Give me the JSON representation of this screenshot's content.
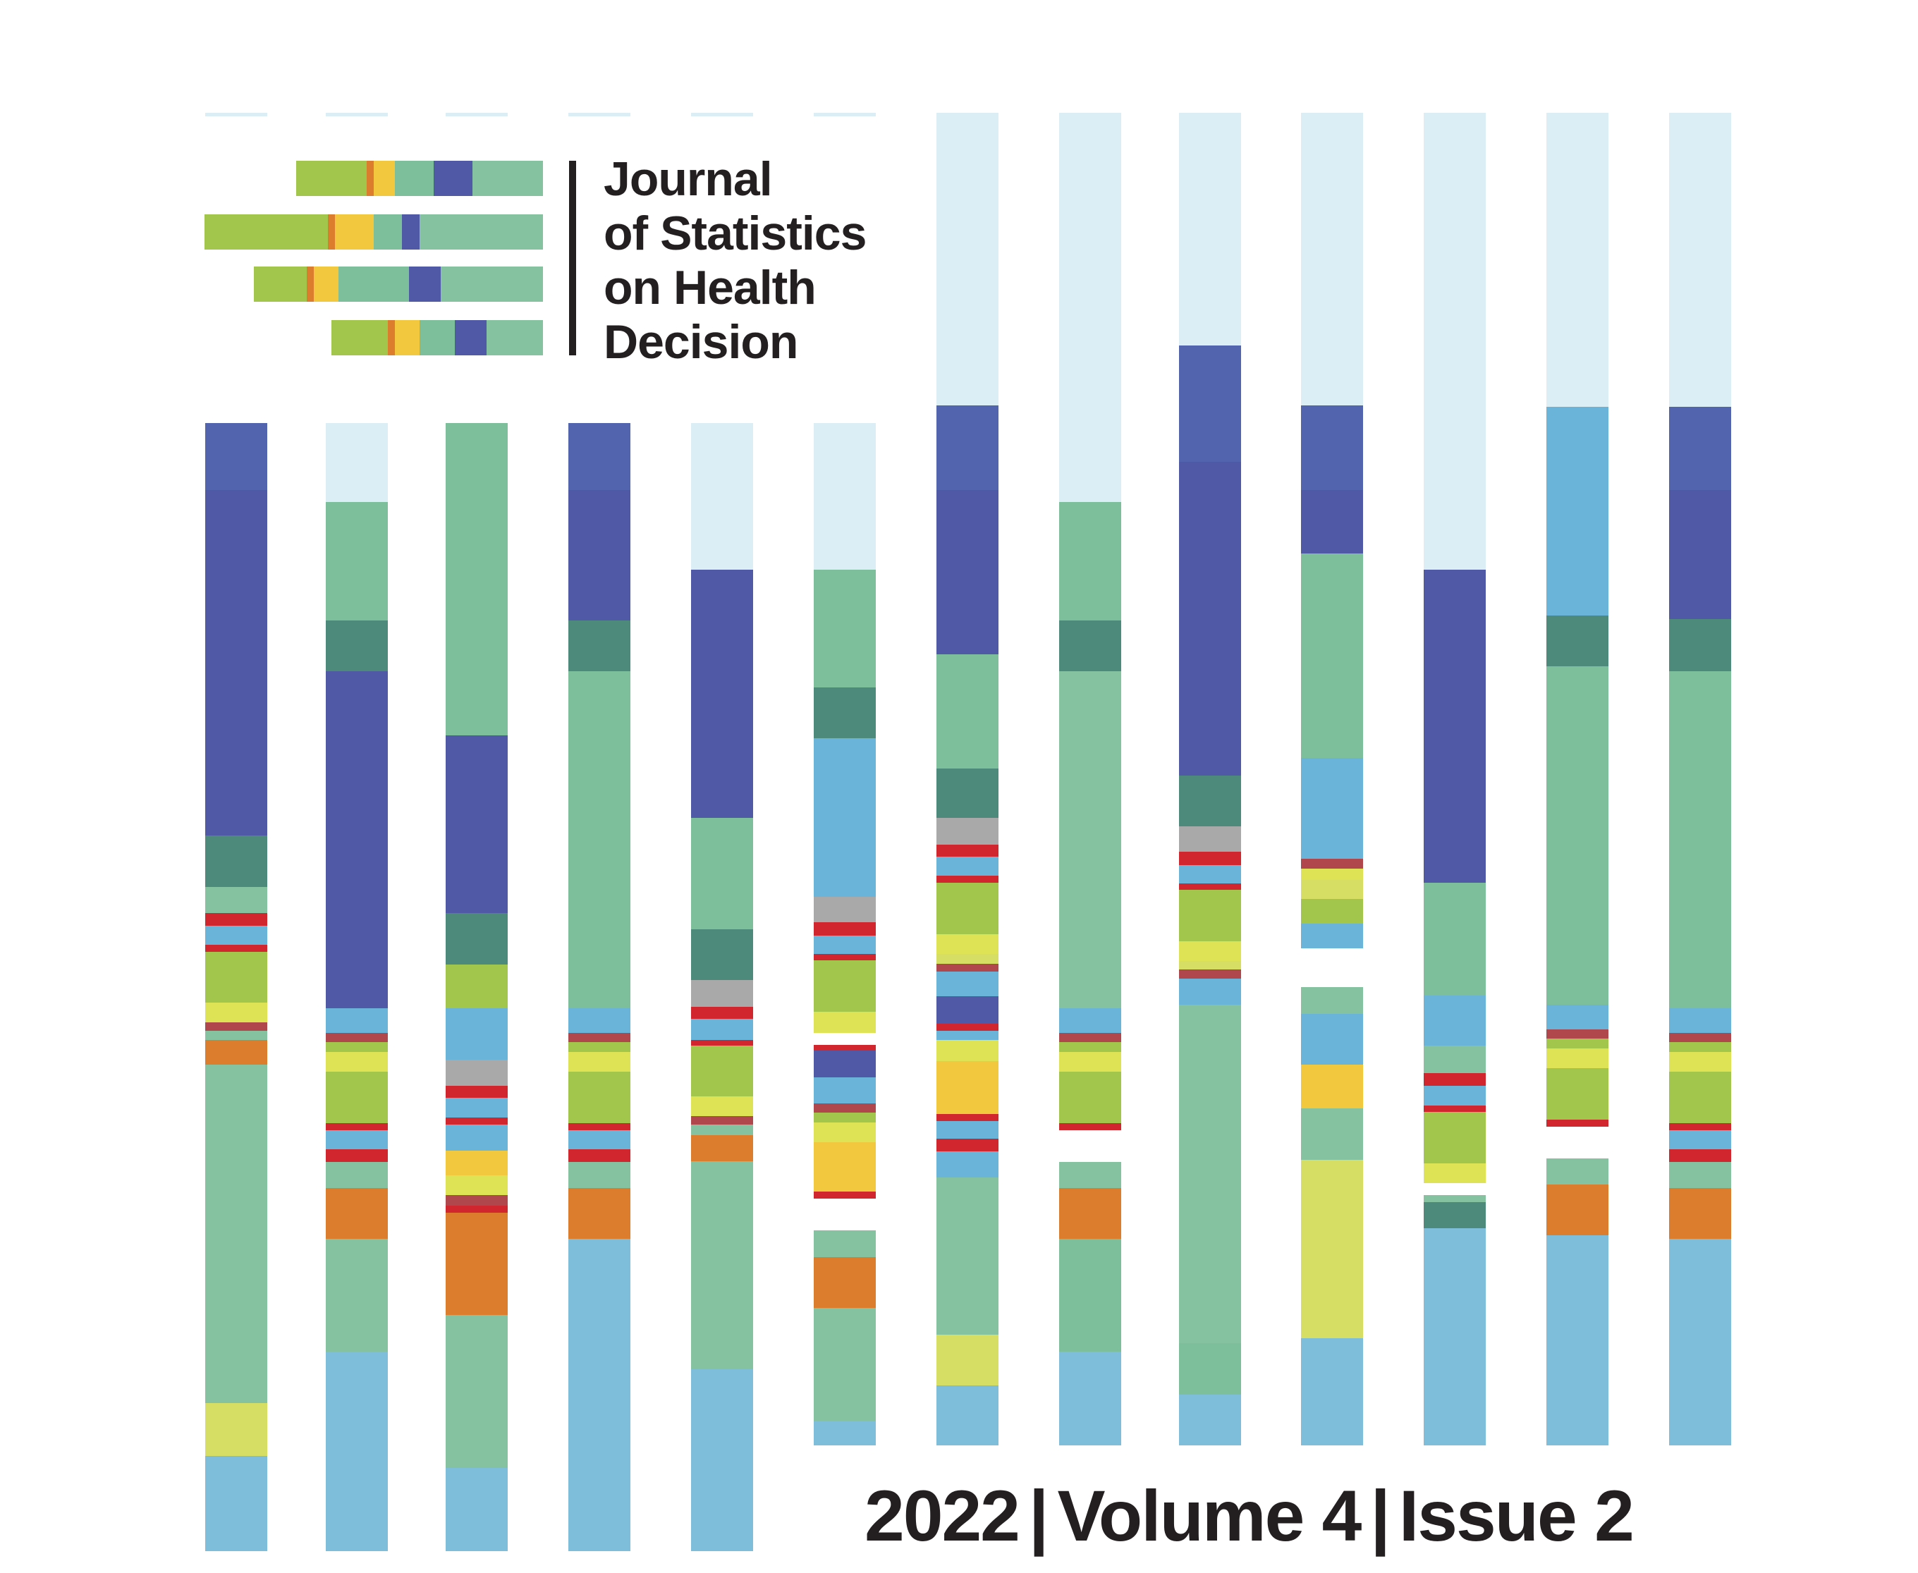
{
  "journal": {
    "title_lines": [
      "Journal",
      "of Statistics",
      "on Health",
      "Decision"
    ]
  },
  "issue": {
    "year": "2022",
    "volume": "Volume 4",
    "issue": "Issue 2",
    "separator": "|"
  },
  "palette": {
    "pale_blue": "#dbedf5",
    "royal_blue": "#5264ad",
    "indigo": "#5059a5",
    "dark_teal": "#4d8a7c",
    "mint": "#7cbf9a",
    "sea_green": "#84c2a0",
    "sky_blue": "#6ab4d9",
    "light_blue": "#7ebeda",
    "grey": "#a9a9a9",
    "red": "#d1262e",
    "lime": "#a1c64b",
    "yellow": "#dde355",
    "gold": "#f2c83e",
    "orange": "#dc7d2e",
    "pale_yellow": "#d6df63",
    "brown_red": "#b0474c"
  },
  "logo_icon": "stacked-color-bars-logo",
  "decoration": "vertical-striped-color-bars"
}
